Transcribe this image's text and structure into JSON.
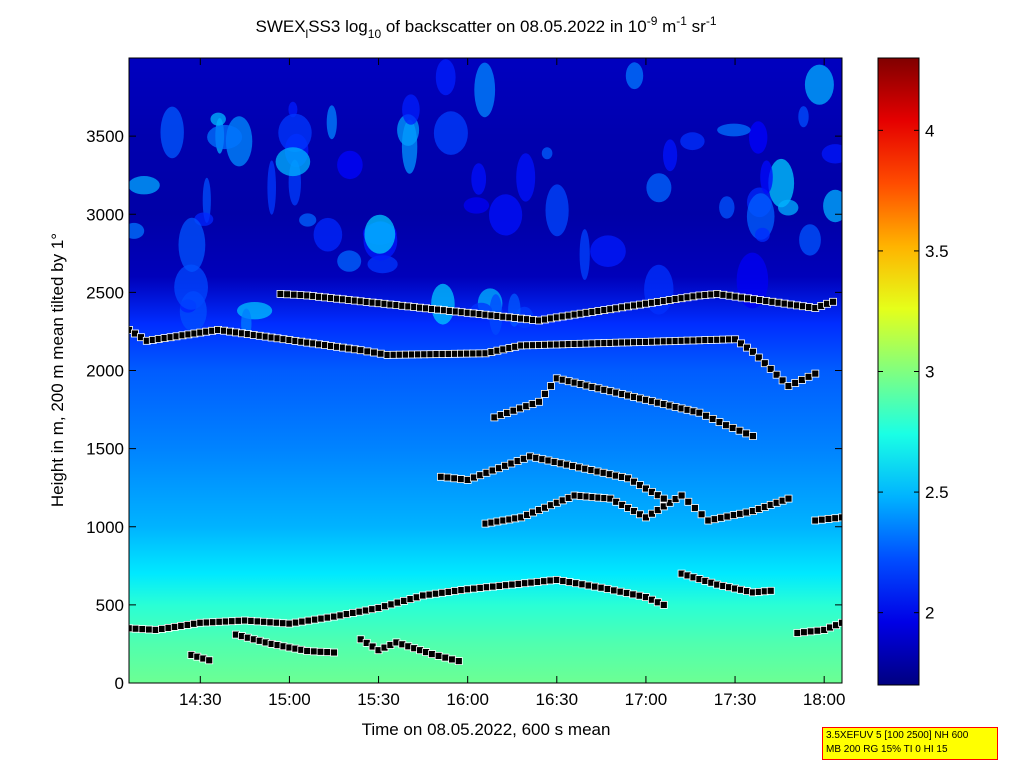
{
  "chart_data": {
    "type": "heatmap",
    "title": {
      "prefix": "SWEX",
      "sub1": "l",
      "mid": "SS3 log",
      "sub2": "10",
      "after": " of backscatter on 08.05.2022 in 10",
      "sup1": "-9",
      "unit_m": " m",
      "sup2": "-1",
      "unit_sr": " sr",
      "sup3": "-1"
    },
    "xlabel": "Time on 08.05.2022, 600 s mean",
    "ylabel": "Height in m, 200 m mean tilted by 1°",
    "xlim_hours": [
      14.1,
      18.1
    ],
    "ylim": [
      0,
      4000
    ],
    "xticks": [
      {
        "h": 14.5,
        "label": "14:30"
      },
      {
        "h": 15.0,
        "label": "15:00"
      },
      {
        "h": 15.5,
        "label": "15:30"
      },
      {
        "h": 16.0,
        "label": "16:00"
      },
      {
        "h": 16.5,
        "label": "16:30"
      },
      {
        "h": 17.0,
        "label": "17:00"
      },
      {
        "h": 17.5,
        "label": "17:30"
      },
      {
        "h": 18.0,
        "label": "18:00"
      }
    ],
    "yticks": [
      0,
      500,
      1000,
      1500,
      2000,
      2500,
      3000,
      3500
    ],
    "colorbar": {
      "min": 1.7,
      "max": 4.3,
      "ticks": [
        {
          "v": 2,
          "label": "2"
        },
        {
          "v": 2.5,
          "label": "2.5"
        },
        {
          "v": 3,
          "label": "3"
        },
        {
          "v": 3.5,
          "label": "3.5"
        },
        {
          "v": 4,
          "label": "4"
        }
      ],
      "colormap": "jet"
    },
    "field_profile": {
      "heights": [
        0,
        250,
        500,
        700,
        1000,
        1500,
        2000,
        2300,
        2600,
        3000,
        3500,
        3950
      ],
      "values": [
        2.95,
        2.88,
        2.78,
        2.62,
        2.48,
        2.36,
        2.26,
        2.14,
        1.85,
        1.8,
        1.82,
        1.86
      ]
    },
    "layer_markers": [
      {
        "name": "boundary-layer-top",
        "color": "black",
        "points": [
          [
            14.1,
            350
          ],
          [
            14.25,
            340
          ],
          [
            14.5,
            385
          ],
          [
            14.75,
            400
          ],
          [
            15.0,
            380
          ],
          [
            15.25,
            425
          ],
          [
            15.5,
            480
          ],
          [
            15.75,
            560
          ],
          [
            16.0,
            600
          ],
          [
            16.25,
            630
          ],
          [
            16.5,
            660
          ],
          [
            16.75,
            610
          ],
          [
            17.0,
            550
          ],
          [
            17.1,
            500
          ]
        ]
      },
      {
        "name": "boundary-layer-top-b",
        "color": "black",
        "points": [
          [
            17.2,
            700
          ],
          [
            17.4,
            630
          ],
          [
            17.6,
            580
          ],
          [
            17.7,
            590
          ]
        ]
      },
      {
        "name": "boundary-layer-top-c",
        "color": "black",
        "points": [
          [
            17.85,
            320
          ],
          [
            18.0,
            340
          ],
          [
            18.1,
            385
          ]
        ]
      },
      {
        "name": "residual-layer",
        "color": "black",
        "points": [
          [
            14.7,
            310
          ],
          [
            14.9,
            250
          ],
          [
            15.1,
            205
          ],
          [
            15.25,
            195
          ]
        ]
      },
      {
        "name": "lower-layer-1",
        "color": "black",
        "points": [
          [
            14.45,
            180
          ],
          [
            14.55,
            145
          ]
        ]
      },
      {
        "name": "lower-layer-2",
        "color": "black",
        "points": [
          [
            15.4,
            280
          ],
          [
            15.5,
            210
          ],
          [
            15.6,
            260
          ],
          [
            15.8,
            185
          ],
          [
            15.95,
            140
          ]
        ]
      },
      {
        "name": "elevated-1000",
        "color": "black",
        "points": [
          [
            16.1,
            1020
          ],
          [
            16.3,
            1060
          ],
          [
            16.6,
            1200
          ],
          [
            16.8,
            1180
          ],
          [
            17.0,
            1060
          ],
          [
            17.2,
            1200
          ],
          [
            17.35,
            1040
          ],
          [
            17.6,
            1100
          ],
          [
            17.8,
            1180
          ]
        ]
      },
      {
        "name": "elevated-1400",
        "color": "black",
        "points": [
          [
            15.85,
            1320
          ],
          [
            16.0,
            1300
          ],
          [
            16.35,
            1450
          ],
          [
            16.9,
            1310
          ],
          [
            17.1,
            1180
          ]
        ]
      },
      {
        "name": "elevated-1700",
        "color": "black",
        "points": [
          [
            16.15,
            1700
          ],
          [
            16.4,
            1800
          ],
          [
            16.5,
            1950
          ],
          [
            17.3,
            1730
          ],
          [
            17.45,
            1650
          ],
          [
            17.6,
            1580
          ]
        ]
      },
      {
        "name": "elevated-2100",
        "color": "black",
        "points": [
          [
            14.1,
            2260
          ],
          [
            14.2,
            2190
          ],
          [
            14.6,
            2260
          ],
          [
            15.4,
            2130
          ],
          [
            15.55,
            2100
          ],
          [
            16.1,
            2110
          ],
          [
            16.3,
            2160
          ],
          [
            17.5,
            2200
          ],
          [
            17.6,
            2120
          ],
          [
            17.8,
            1900
          ],
          [
            17.95,
            1980
          ]
        ]
      },
      {
        "name": "elevated-2400",
        "color": "black",
        "points": [
          [
            14.95,
            2490
          ],
          [
            15.1,
            2480
          ],
          [
            16.4,
            2320
          ],
          [
            16.5,
            2340
          ],
          [
            17.3,
            2480
          ],
          [
            17.4,
            2490
          ],
          [
            17.95,
            2400
          ],
          [
            18.05,
            2440
          ]
        ]
      },
      {
        "name": "elevated-upper-right",
        "color": "black",
        "points": [
          [
            17.95,
            1040
          ],
          [
            18.1,
            1060
          ]
        ]
      }
    ]
  }
}
